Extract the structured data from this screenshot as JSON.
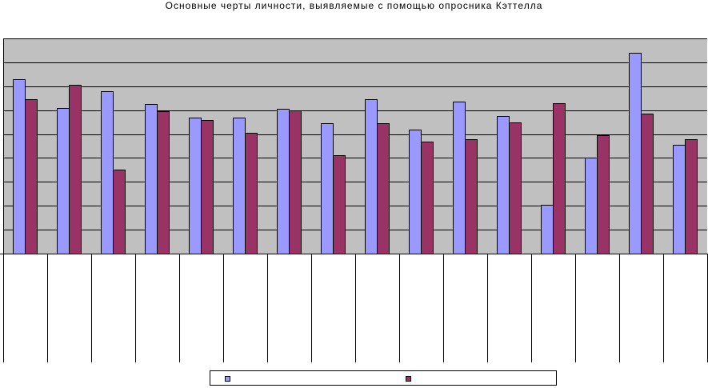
{
  "chart_data": {
    "type": "bar",
    "title": "Основные черты личности, выявляемые с помощью опросника Кэттелла",
    "categories": [
      "",
      "",
      "",
      "",
      "",
      "",
      "",
      "",
      "",
      "",
      "",
      "",
      "",
      "",
      "",
      ""
    ],
    "series": [
      {
        "name": "",
        "color": "#9999ff",
        "values": [
          7.3,
          6.1,
          6.8,
          6.25,
          5.7,
          5.7,
          6.05,
          5.45,
          6.45,
          5.2,
          6.35,
          5.75,
          2.05,
          4.0,
          8.4,
          4.55
        ]
      },
      {
        "name": "",
        "color": "#993366",
        "values": [
          6.45,
          7.05,
          3.5,
          5.95,
          5.6,
          5.05,
          6.0,
          4.1,
          5.45,
          4.7,
          4.8,
          5.5,
          6.3,
          4.95,
          5.85,
          4.8
        ]
      }
    ],
    "ylim": [
      0,
      9
    ],
    "ytick_step": 1,
    "grid": true,
    "legend_position": "bottom",
    "colors": {
      "plot_background": "#c0c0c0",
      "gridline": "#000000"
    }
  }
}
